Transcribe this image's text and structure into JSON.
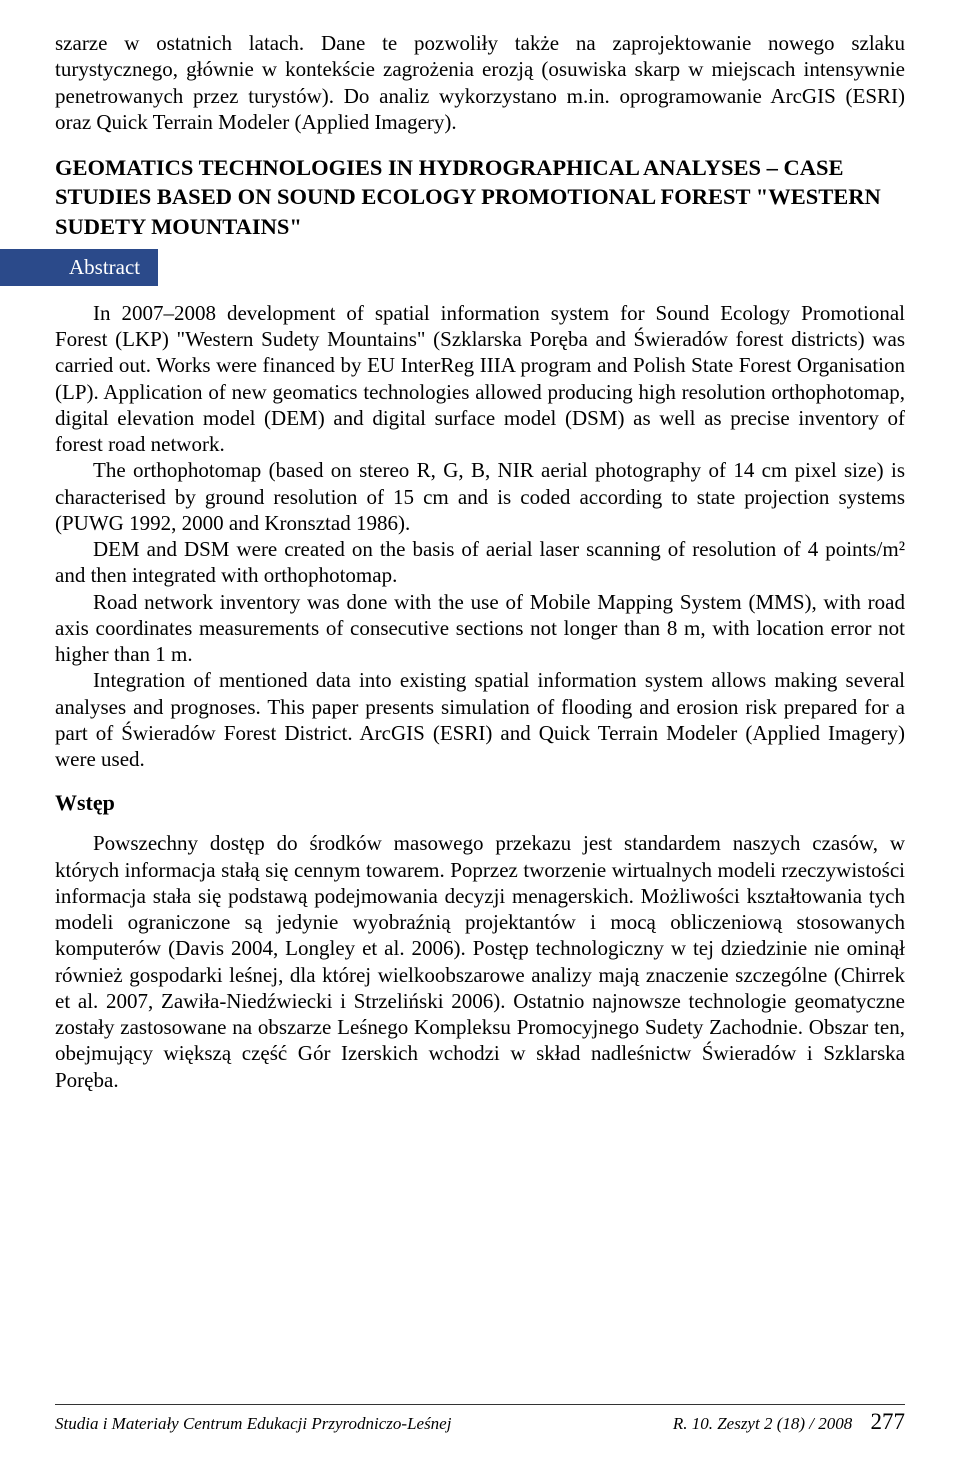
{
  "intro_para": "szarze w ostatnich latach. Dane te pozwoliły także na zaprojektowanie nowego szlaku turystycznego, głównie w kontekście zagrożenia erozją (osuwiska skarp w miejscach intensywnie penetrowanych przez turystów). Do analiz wykorzystano m.in. oprogramowanie ArcGIS (ESRI) oraz Quick Terrain Modeler (Applied Imagery).",
  "section_title": "GEOMATICS TECHNOLOGIES IN HYDROGRAPHICAL ANALYSES – CASE STUDIES BASED ON SOUND ECOLOGY PROMOTIONAL FOREST \"WESTERN SUDETY MOUNTAINS\"",
  "abstract_label": "Abstract",
  "abstract_p1": "In 2007–2008 development of spatial information system for Sound Ecology Promotional Forest (LKP) \"Western Sudety Mountains\" (Szklarska Poręba and Świeradów forest districts) was carried out. Works were financed by EU InterReg IIIA program and Polish State Forest Organisation (LP). Application of new geomatics technologies allowed producing high resolution orthophotomap, digital elevation model (DEM) and digital surface model (DSM) as well as precise inventory of forest road network.",
  "abstract_p2": "The orthophotomap (based on stereo R, G, B, NIR aerial photography of 14 cm pixel size) is characterised by ground resolution of 15 cm and is coded according to state projection systems (PUWG 1992, 2000 and Kronsztad 1986).",
  "abstract_p3": "DEM and DSM were created on the basis of aerial laser scanning of resolution of 4 points/m² and then integrated with orthophotomap.",
  "abstract_p4": "Road network inventory was done with the use of Mobile Mapping System (MMS), with road axis coordinates measurements of consecutive sections not longer than 8 m, with location error not higher than 1 m.",
  "abstract_p5": "Integration of mentioned data into existing spatial information system allows making several analyses and prognoses. This paper presents simulation of flooding and erosion risk prepared for a part of Świeradów Forest District. ArcGIS (ESRI) and Quick Terrain Modeler (Applied Imagery) were used.",
  "subsection": "Wstęp",
  "wstep_para": "Powszechny dostęp do środków masowego przekazu jest standardem naszych czasów, w których informacja stałą się cennym towarem. Poprzez tworzenie wirtualnych modeli rzeczywistości informacja stała się podstawą podejmowania decyzji menagerskich. Możliwości kształtowania tych modeli ograniczone są jedynie wyobraźnią projektantów i mocą obliczeniową stosowanych komputerów (Davis 2004, Longley et al. 2006). Postęp technologiczny w tej dziedzinie nie ominął również gospodarki leśnej, dla której wielkoobszarowe analizy mają znaczenie szczególne (Chirrek et al. 2007, Zawiła-Niedźwiecki i Strzeliński 2006). Ostatnio najnowsze technologie geomatyczne zostały zastosowane na obszarze Leśnego Kompleksu Promocyjnego Sudety Zachodnie. Obszar ten, obejmujący większą część Gór Izerskich wchodzi w skład nadleśnictw Świeradów i Szklarska Poręba.",
  "footer_left": "Studia i Materiały Centrum Edukacji Przyrodniczo-Leśnej",
  "footer_right_issue": "R. 10. Zeszyt 2 (18) / 2008",
  "footer_page": "277"
}
